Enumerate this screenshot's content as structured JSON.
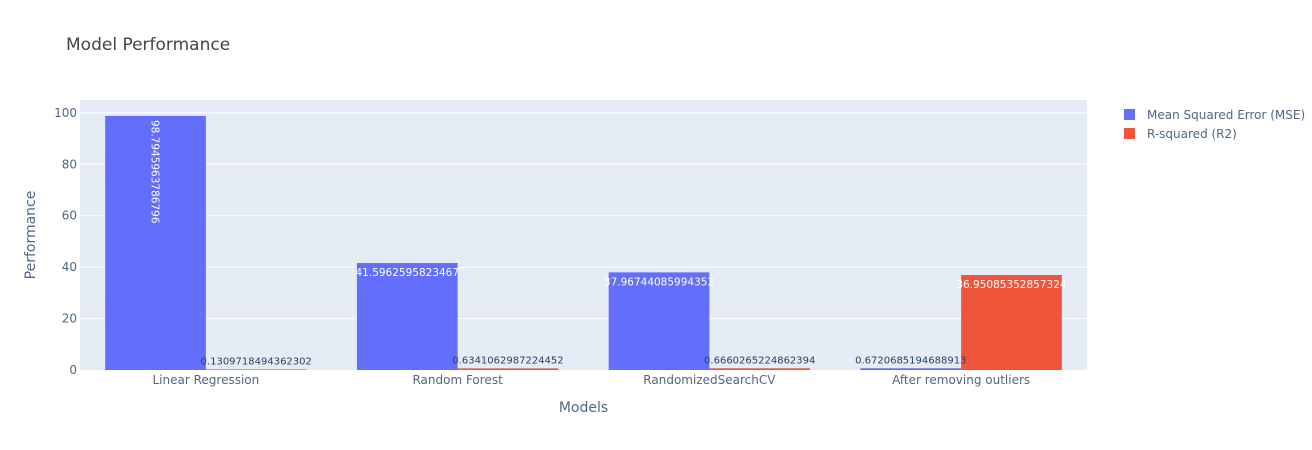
{
  "chart_data": {
    "type": "bar",
    "title": "Model Performance",
    "xlabel": "Models",
    "ylabel": "Performance",
    "categories": [
      "Linear Regression",
      "Random Forest",
      "RandomizedSearchCV",
      "After removing outliers"
    ],
    "ylim": [
      0,
      105
    ],
    "yticks": [
      0,
      20,
      40,
      60,
      80,
      100
    ],
    "grid": true,
    "legend_position": "top-right",
    "series": [
      {
        "name": "Mean Squared Error (MSE)",
        "color": "#636efa",
        "values": [
          98.7945963786797,
          41.5962595823467,
          37.96744085994352,
          0.6720685194688913
        ],
        "labels": [
          "98.7945963786796",
          "41.5962595823467",
          "37.96744085994352",
          "0.6720685194688913"
        ]
      },
      {
        "name": "R-squared (R2)",
        "color": "#ef553b",
        "values": [
          0.1309718494362302,
          0.6341062987224452,
          0.6660265224862394,
          36.95085352857324
        ],
        "labels": [
          "0.1309718494362302",
          "0.6341062987224452",
          "0.6660265224862394",
          "36.95085352857324"
        ]
      }
    ]
  }
}
